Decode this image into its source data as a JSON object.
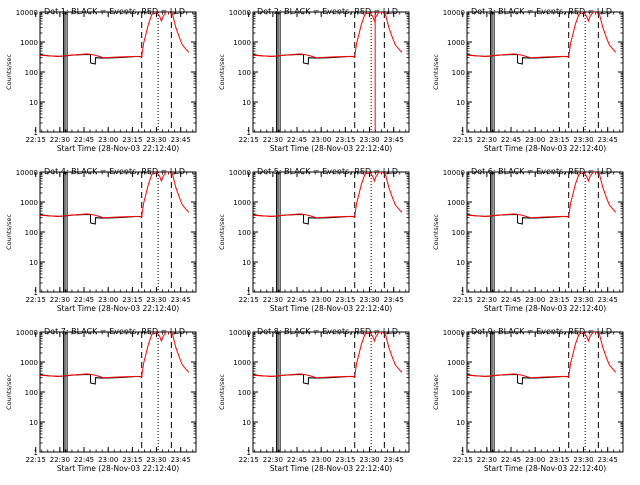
{
  "chart_data": {
    "type": "line",
    "x_tick_labels": [
      "22:15",
      "22:30",
      "22:45",
      "23:00",
      "23:15",
      "23:30",
      "23:45"
    ],
    "y_tick_labels": [
      "1",
      "10",
      "100",
      "1000",
      "10000"
    ],
    "y_scale": "log",
    "ylim": [
      1,
      10000
    ],
    "ylabel": "Counts/sec",
    "xlabel": "Start Time (28-Nov-03 22:12:40)",
    "x_minutes_range": [
      2.67,
      99.5
    ],
    "grid": false,
    "colors": {
      "events": "#000000",
      "lld": "#ff0000"
    },
    "vertical_markers": [
      {
        "minute": 17.3,
        "style": "solid"
      },
      {
        "minute": 18.2,
        "style": "solid"
      },
      {
        "minute": 19.5,
        "style": "solid"
      },
      {
        "minute": 65.8,
        "style": "dashed"
      },
      {
        "minute": 84.2,
        "style": "dashed"
      },
      {
        "minute": 76.0,
        "style": "dotted"
      }
    ],
    "event_curve": [
      [
        2.67,
        380
      ],
      [
        8,
        350
      ],
      [
        14,
        330
      ],
      [
        17.3,
        340
      ],
      [
        19.5,
        355
      ],
      [
        24,
        370
      ],
      [
        30,
        380
      ],
      [
        34,
        380
      ],
      [
        34.1,
        200
      ],
      [
        37,
        185
      ],
      [
        37.1,
        300
      ],
      [
        42,
        290
      ],
      [
        50,
        300
      ],
      [
        55,
        310
      ],
      [
        60,
        320
      ],
      [
        64,
        330
      ],
      [
        65.8,
        320
      ]
    ],
    "lld_curve": [
      [
        2.67,
        360
      ],
      [
        8,
        345
      ],
      [
        14,
        330
      ],
      [
        20,
        355
      ],
      [
        26,
        380
      ],
      [
        32,
        400
      ],
      [
        37,
        360
      ],
      [
        42,
        300
      ],
      [
        48,
        310
      ],
      [
        55,
        320
      ],
      [
        62,
        330
      ],
      [
        65.8,
        320
      ],
      [
        67,
        900
      ],
      [
        70,
        4000
      ],
      [
        72,
        8000
      ],
      [
        73.5,
        10000
      ],
      [
        75,
        10000
      ],
      [
        77,
        7000
      ],
      [
        78,
        5000
      ],
      [
        79,
        7000
      ],
      [
        81,
        10000
      ],
      [
        83,
        10000
      ],
      [
        85,
        8000
      ],
      [
        87,
        3000
      ],
      [
        89,
        1500
      ],
      [
        91,
        800
      ],
      [
        93,
        600
      ],
      [
        95,
        450
      ]
    ],
    "panels": [
      {
        "title": "Det 1: BLACK = Events, RED = LLD",
        "red_spike_minute": null
      },
      {
        "title": "Det 2: BLACK = Events, RED = LLD",
        "red_spike_minute": 78.5
      },
      {
        "title": "Det 3: BLACK = Events, RED = LLD",
        "red_spike_minute": null
      },
      {
        "title": "Det 4: BLACK = Events, RED = LLD",
        "red_spike_minute": null
      },
      {
        "title": "Det 5: BLACK = Events, RED = LLD",
        "red_spike_minute": null
      },
      {
        "title": "Det 6: BLACK = Events, RED = LLD",
        "red_spike_minute": null
      },
      {
        "title": "Det 7: BLACK = Events, RED = LLD",
        "red_spike_minute": null
      },
      {
        "title": "Det 8: BLACK = Events, RED = LLD",
        "red_spike_minute": null
      },
      {
        "title": "Det 9: BLACK = Events, RED = LLD",
        "red_spike_minute": null
      }
    ]
  }
}
